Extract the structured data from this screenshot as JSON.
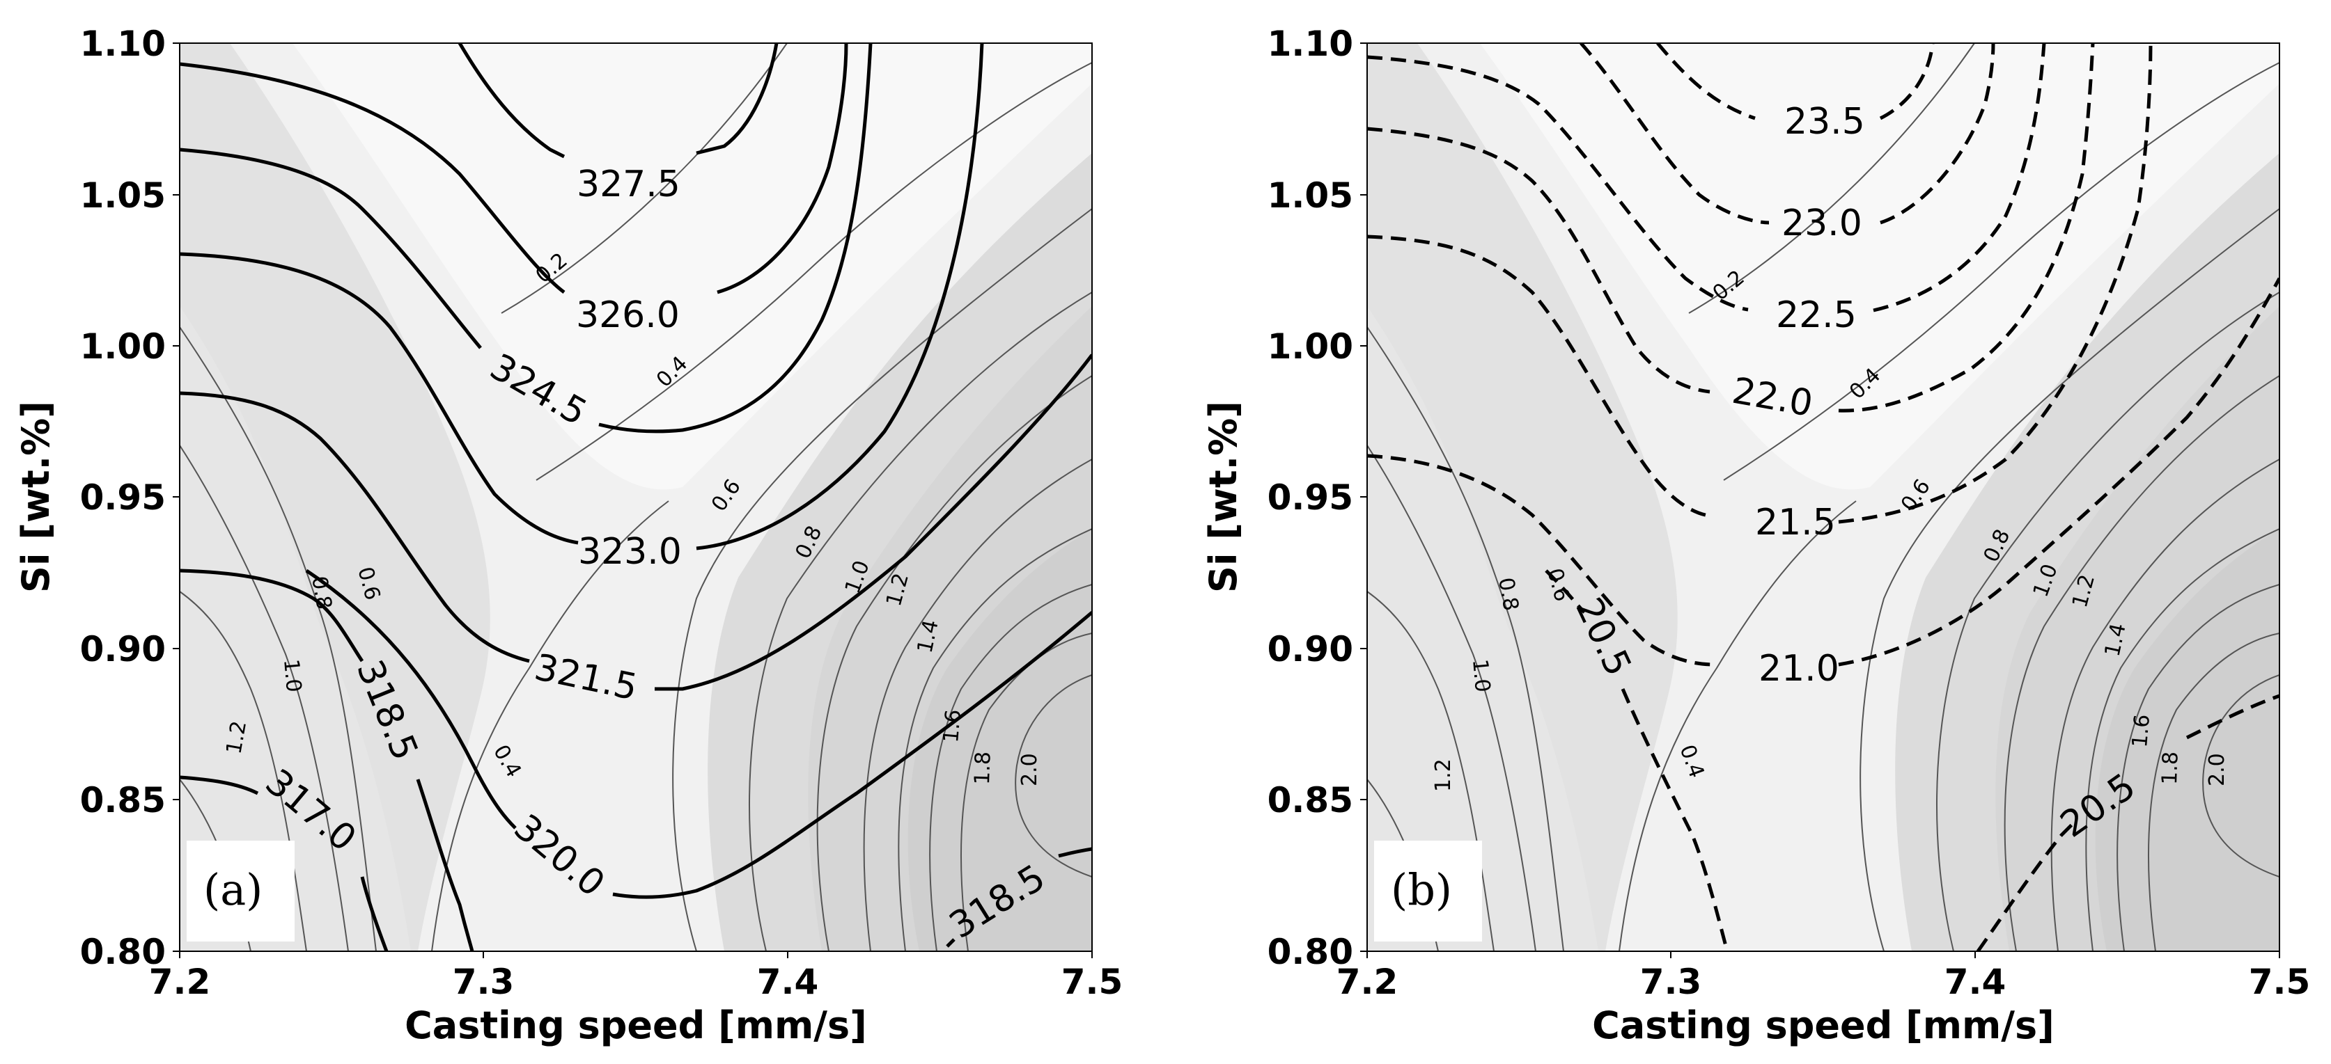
{
  "chart_data": [
    {
      "type": "contour",
      "panel_label": "(a)",
      "xlabel": "Casting speed [mm/s]",
      "ylabel": "Si [wt.%]",
      "xlim": [
        7.2,
        7.5
      ],
      "ylim": [
        0.8,
        1.1
      ],
      "x_ticks": [
        "7.2",
        "7.3",
        "7.4",
        "7.5"
      ],
      "y_ticks": [
        "0.80",
        "0.85",
        "0.90",
        "0.95",
        "1.00",
        "1.05",
        "1.10"
      ],
      "main_contour_style": "solid",
      "main_contour_labels": [
        "327.5",
        "326.0",
        "324.5",
        "323.0",
        "321.5",
        "320.0",
        "318.5",
        "317.0",
        "318.5"
      ],
      "uncertainty_contour_labels": [
        "0.2",
        "0.4",
        "0.6",
        "0.8",
        "1.0",
        "1.2",
        "1.4",
        "1.6",
        "1.8",
        "2.0",
        "0.8",
        "0.6",
        "1.0",
        "1.2",
        "0.4"
      ]
    },
    {
      "type": "contour",
      "panel_label": "(b)",
      "xlabel": "Casting speed [mm/s]",
      "ylabel": "Si [wt.%]",
      "xlim": [
        7.2,
        7.5
      ],
      "ylim": [
        0.8,
        1.1
      ],
      "x_ticks": [
        "7.2",
        "7.3",
        "7.4",
        "7.5"
      ],
      "y_ticks": [
        "0.80",
        "0.85",
        "0.90",
        "0.95",
        "1.00",
        "1.05",
        "1.10"
      ],
      "main_contour_style": "dashed",
      "main_contour_labels": [
        "23.5",
        "23.0",
        "22.5",
        "22.0",
        "21.5",
        "21.0",
        "20.5",
        "20.5"
      ],
      "uncertainty_contour_labels": [
        "0.2",
        "0.4",
        "0.6",
        "0.8",
        "1.0",
        "1.2",
        "1.4",
        "1.6",
        "1.8",
        "2.0",
        "0.8",
        "0.6",
        "1.0",
        "1.2",
        "0.4"
      ]
    }
  ]
}
